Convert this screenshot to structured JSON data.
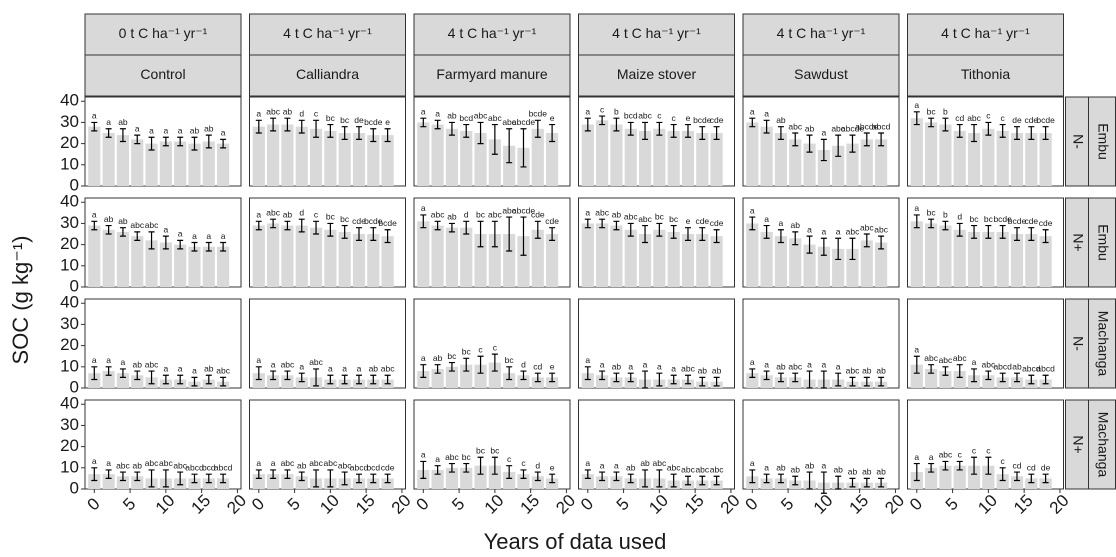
{
  "chart_data": {
    "type": "bar",
    "ylabel": "SOC (g kg⁻¹)",
    "xlabel": "Years of data used",
    "x": [
      0,
      2,
      4,
      6,
      8,
      10,
      12,
      14,
      16,
      18
    ],
    "xlim": [
      -1.3,
      20.5
    ],
    "xticks": [
      0,
      5,
      10,
      15,
      20
    ],
    "ylim": [
      0,
      42
    ],
    "yticks": [
      0,
      10,
      20,
      30,
      40
    ],
    "bar_color": "#d9d9d9",
    "columns": [
      {
        "rate": "0 t C ha⁻¹ yr⁻¹",
        "treatment": "Control"
      },
      {
        "rate": "4 t C ha⁻¹ yr⁻¹",
        "treatment": "Calliandra"
      },
      {
        "rate": "4 t C ha⁻¹ yr⁻¹",
        "treatment": "Farmyard manure"
      },
      {
        "rate": "4 t C ha⁻¹ yr⁻¹",
        "treatment": "Maize stover"
      },
      {
        "rate": "4 t C ha⁻¹ yr⁻¹",
        "treatment": "Sawdust"
      },
      {
        "rate": "4 t C ha⁻¹ yr⁻¹",
        "treatment": "Tithonia"
      }
    ],
    "rows": [
      {
        "nitrogen": "N-",
        "site": "Embu"
      },
      {
        "nitrogen": "N+",
        "site": "Embu"
      },
      {
        "nitrogen": "N-",
        "site": "Machanga"
      },
      {
        "nitrogen": "N+",
        "site": "Machanga"
      }
    ],
    "panels": [
      [
        {
          "values": [
            28,
            25,
            24,
            22,
            20,
            21,
            21,
            20,
            21,
            20
          ],
          "errors": [
            2,
            2,
            3,
            2,
            3,
            2,
            2,
            3,
            3,
            2
          ],
          "letters": [
            "a",
            "a",
            "ab",
            "a",
            "a",
            "a",
            "a",
            "ab",
            "ab",
            "a"
          ]
        },
        {
          "values": [
            28,
            29,
            29,
            28,
            27,
            26,
            25,
            25,
            24,
            24
          ],
          "errors": [
            3,
            3,
            3,
            3,
            4,
            3,
            3,
            3,
            3,
            3
          ],
          "letters": [
            "a",
            "abc",
            "ab",
            "d",
            "c",
            "bc",
            "bc",
            "de",
            "bcde",
            "e"
          ]
        },
        {
          "values": [
            30,
            29,
            27,
            26,
            25,
            22,
            19,
            18,
            27,
            25
          ],
          "errors": [
            2,
            2,
            3,
            3,
            5,
            7,
            8,
            9,
            4,
            4
          ],
          "letters": [
            "a",
            "a",
            "ab",
            "bcd",
            "abc",
            "abc",
            "abc",
            "abcde",
            "bcde",
            "e"
          ]
        },
        {
          "values": [
            29,
            31,
            29,
            27,
            26,
            27,
            26,
            26,
            25,
            25
          ],
          "errors": [
            3,
            2,
            3,
            3,
            4,
            3,
            3,
            3,
            3,
            3
          ],
          "letters": [
            "a",
            "c",
            "b",
            "bcd",
            "abc",
            "c",
            "c",
            "e",
            "bcde",
            "cde"
          ]
        },
        {
          "values": [
            30,
            28,
            25,
            22,
            20,
            17,
            19,
            20,
            22,
            22
          ],
          "errors": [
            2,
            3,
            3,
            3,
            4,
            5,
            5,
            4,
            3,
            3
          ],
          "letters": [
            "a",
            "a",
            "ab",
            "abc",
            "ab",
            "a",
            "abc",
            "abcde",
            "abcde",
            "abcd"
          ]
        },
        {
          "values": [
            32,
            30,
            29,
            26,
            25,
            27,
            26,
            25,
            25,
            25
          ],
          "errors": [
            3,
            2,
            3,
            3,
            4,
            3,
            3,
            3,
            3,
            3
          ],
          "letters": [
            "a",
            "bc",
            "b",
            "cd",
            "abc",
            "c",
            "c",
            "de",
            "cde",
            "bcde"
          ]
        }
      ],
      [
        {
          "values": [
            29,
            27,
            26,
            24,
            22,
            21,
            20,
            19,
            19,
            19
          ],
          "errors": [
            2,
            2,
            2,
            2,
            4,
            3,
            2,
            2,
            2,
            2
          ],
          "letters": [
            "a",
            "ab",
            "ab",
            "abc",
            "abc",
            "a",
            "a",
            "a",
            "a",
            "a"
          ]
        },
        {
          "values": [
            29,
            30,
            29,
            29,
            28,
            27,
            26,
            25,
            25,
            24
          ],
          "errors": [
            2,
            2,
            2,
            3,
            3,
            3,
            3,
            3,
            3,
            3
          ],
          "letters": [
            "a",
            "abc",
            "ab",
            "d",
            "c",
            "bc",
            "bc",
            "cde",
            "bcde",
            "bcde"
          ]
        },
        {
          "values": [
            31,
            29,
            28,
            28,
            25,
            25,
            25,
            24,
            27,
            25
          ],
          "errors": [
            3,
            2,
            2,
            3,
            6,
            6,
            8,
            9,
            4,
            3
          ],
          "letters": [
            "a",
            "abc",
            "ab",
            "d",
            "bc",
            "abc",
            "abc",
            "abcde",
            "cde",
            "cde"
          ]
        },
        {
          "values": [
            30,
            30,
            29,
            27,
            25,
            27,
            26,
            25,
            25,
            24
          ],
          "errors": [
            2,
            2,
            2,
            3,
            4,
            3,
            3,
            3,
            3,
            3
          ],
          "letters": [
            "a",
            "abc",
            "ab",
            "abc",
            "abc",
            "bc",
            "bc",
            "e",
            "cde",
            "cde"
          ]
        },
        {
          "values": [
            30,
            26,
            24,
            23,
            20,
            19,
            18,
            18,
            22,
            21
          ],
          "errors": [
            3,
            3,
            3,
            3,
            4,
            4,
            5,
            5,
            3,
            3
          ],
          "letters": [
            "a",
            "a",
            "a",
            "ab",
            "a",
            "a",
            "a",
            "abc",
            "abc",
            "abc"
          ]
        },
        {
          "values": [
            31,
            30,
            29,
            27,
            26,
            26,
            26,
            25,
            25,
            24
          ],
          "errors": [
            3,
            2,
            2,
            3,
            3,
            3,
            3,
            3,
            3,
            3
          ],
          "letters": [
            "a",
            "bc",
            "b",
            "d",
            "bc",
            "bc",
            "bcde",
            "bcde",
            "cde",
            "cde"
          ]
        }
      ],
      [
        {
          "values": [
            7,
            8,
            7,
            6,
            5,
            4,
            4,
            3,
            4,
            3
          ],
          "errors": [
            3,
            2,
            2,
            2,
            3,
            2,
            2,
            2,
            2,
            2
          ],
          "letters": [
            "a",
            "a",
            "a",
            "ab",
            "abc",
            "a",
            "a",
            "a",
            "ab",
            "abc"
          ]
        },
        {
          "values": [
            7,
            6,
            6,
            5,
            5,
            4,
            4,
            4,
            4,
            4
          ],
          "errors": [
            3,
            2,
            2,
            2,
            4,
            2,
            2,
            2,
            2,
            2
          ],
          "letters": [
            "a",
            "a",
            "abc",
            "a",
            "abc",
            "a",
            "a",
            "a",
            "ab",
            "abc"
          ]
        },
        {
          "values": [
            8,
            9,
            10,
            11,
            11,
            12,
            7,
            6,
            5,
            5
          ],
          "errors": [
            3,
            2,
            2,
            3,
            4,
            4,
            3,
            2,
            2,
            2
          ],
          "letters": [
            "a",
            "ab",
            "bc",
            "bc",
            "c",
            "c",
            "bc",
            "d",
            "cd",
            "e"
          ]
        },
        {
          "values": [
            7,
            6,
            5,
            5,
            4,
            4,
            4,
            4,
            3,
            3
          ],
          "errors": [
            3,
            2,
            2,
            2,
            4,
            3,
            2,
            2,
            2,
            2
          ],
          "letters": [
            "a",
            "a",
            "ab",
            "a",
            "a",
            "a",
            "a",
            "abc",
            "ab",
            "ab"
          ]
        },
        {
          "values": [
            7,
            6,
            5,
            5,
            4,
            4,
            4,
            3,
            3,
            3
          ],
          "errors": [
            2,
            2,
            2,
            2,
            4,
            4,
            3,
            2,
            2,
            2
          ],
          "letters": [
            "a",
            "a",
            "ab",
            "abc",
            "a",
            "a",
            "a",
            "abc",
            "ab",
            "ab"
          ]
        },
        {
          "values": [
            11,
            9,
            8,
            8,
            6,
            6,
            5,
            5,
            4,
            4
          ],
          "errors": [
            4,
            2,
            2,
            3,
            3,
            2,
            2,
            2,
            2,
            2
          ],
          "letters": [
            "a",
            "abc",
            "abc",
            "abc",
            "a",
            "abc",
            "abcd",
            "ab",
            "abcd",
            "abcd"
          ]
        }
      ],
      [
        {
          "values": [
            7,
            7,
            6,
            6,
            5,
            5,
            5,
            5,
            5,
            5
          ],
          "errors": [
            3,
            2,
            2,
            2,
            4,
            4,
            3,
            2,
            2,
            2
          ],
          "letters": [
            "a",
            "a",
            "abc",
            "ab",
            "abc",
            "abc",
            "abc",
            "abcd",
            "bcd",
            "abcd"
          ]
        },
        {
          "values": [
            7,
            7,
            7,
            6,
            5,
            5,
            5,
            5,
            5,
            5
          ],
          "errors": [
            2,
            2,
            2,
            2,
            4,
            4,
            3,
            2,
            2,
            2
          ],
          "letters": [
            "a",
            "a",
            "abc",
            "ab",
            "abc",
            "abc",
            "abc",
            "abcd",
            "bcd",
            "cde"
          ]
        },
        {
          "values": [
            9,
            9,
            10,
            10,
            11,
            11,
            8,
            7,
            6,
            5
          ],
          "errors": [
            4,
            2,
            2,
            2,
            4,
            4,
            3,
            2,
            2,
            2
          ],
          "letters": [
            "a",
            "a",
            "abc",
            "bc",
            "bc",
            "bc",
            "c",
            "c",
            "d",
            "e"
          ]
        },
        {
          "values": [
            7,
            6,
            6,
            5,
            5,
            5,
            4,
            4,
            4,
            4
          ],
          "errors": [
            2,
            2,
            2,
            2,
            4,
            4,
            3,
            2,
            2,
            2
          ],
          "letters": [
            "a",
            "a",
            "a",
            "ab",
            "ab",
            "abc",
            "abc",
            "abc",
            "abc",
            "abc"
          ]
        },
        {
          "values": [
            6,
            5,
            5,
            4,
            4,
            3,
            3,
            3,
            3,
            3
          ],
          "errors": [
            3,
            2,
            2,
            2,
            4,
            5,
            3,
            2,
            2,
            2
          ],
          "letters": [
            "a",
            "a",
            "ab",
            "ab",
            "ab",
            "a",
            "ab",
            "ab",
            "ab",
            "ab"
          ]
        },
        {
          "values": [
            8,
            10,
            11,
            11,
            11,
            11,
            7,
            6,
            5,
            5
          ],
          "errors": [
            4,
            2,
            2,
            2,
            4,
            4,
            3,
            2,
            2,
            2
          ],
          "letters": [
            "a",
            "a",
            "abc",
            "c",
            "c",
            "c",
            "c",
            "cd",
            "cd",
            "de"
          ]
        }
      ]
    ]
  }
}
